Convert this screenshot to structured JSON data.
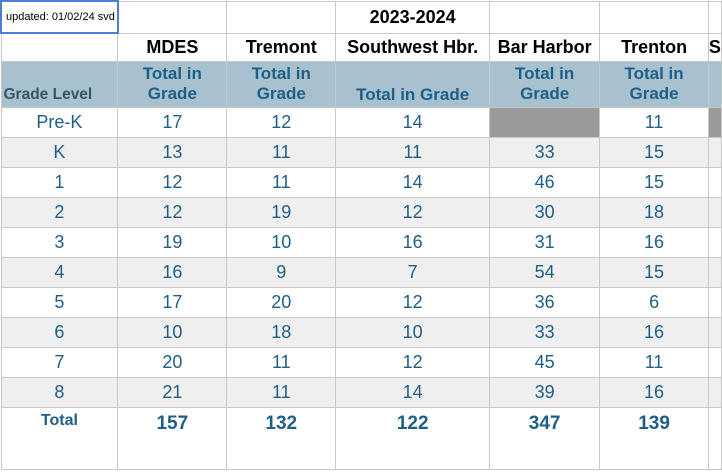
{
  "note": "updated: 01/02/24  svd",
  "year": "2023-2024",
  "schools": [
    "MDES",
    "Tremont",
    "Southwest Hbr.",
    "Bar Harbor",
    "Trenton",
    "S"
  ],
  "grade_level_label": "Grade Level",
  "sub_header": {
    "line1": "Total in",
    "line2": "Grade",
    "single": "Total in Grade"
  },
  "rows": [
    {
      "grade": "Pre-K",
      "values": [
        "17",
        "12",
        "14",
        "",
        "11"
      ]
    },
    {
      "grade": "K",
      "values": [
        "13",
        "11",
        "11",
        "33",
        "15"
      ]
    },
    {
      "grade": "1",
      "values": [
        "12",
        "11",
        "14",
        "46",
        "15"
      ]
    },
    {
      "grade": "2",
      "values": [
        "12",
        "19",
        "12",
        "30",
        "18"
      ]
    },
    {
      "grade": "3",
      "values": [
        "19",
        "10",
        "16",
        "31",
        "16"
      ]
    },
    {
      "grade": "4",
      "values": [
        "16",
        "9",
        "7",
        "54",
        "15"
      ]
    },
    {
      "grade": "5",
      "values": [
        "17",
        "20",
        "12",
        "36",
        "6"
      ]
    },
    {
      "grade": "6",
      "values": [
        "10",
        "18",
        "10",
        "33",
        "16"
      ]
    },
    {
      "grade": "7",
      "values": [
        "20",
        "11",
        "12",
        "45",
        "11"
      ]
    },
    {
      "grade": "8",
      "values": [
        "21",
        "11",
        "14",
        "39",
        "16"
      ]
    }
  ],
  "total": {
    "label": "Total",
    "values": [
      "157",
      "132",
      "122",
      "347",
      "139"
    ]
  },
  "colors": {
    "header_fill": "#a7c1cf",
    "text_blue": "#1f5f86",
    "stripe": "#efefef",
    "blank_cell": "#9a9a9a"
  }
}
